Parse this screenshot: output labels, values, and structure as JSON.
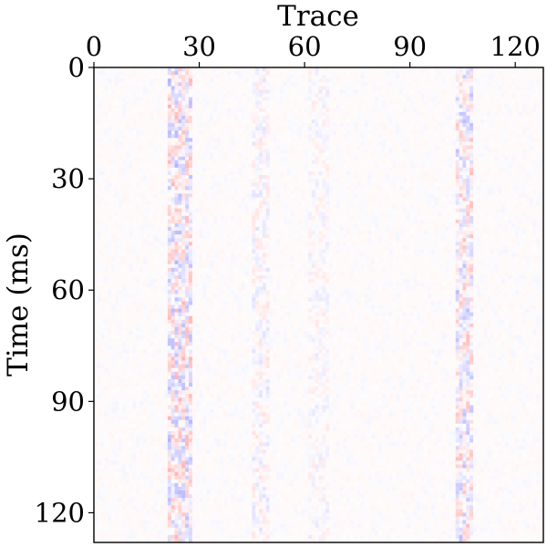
{
  "chart_data": {
    "type": "heatmap",
    "title": "",
    "xlabel": "Trace",
    "ylabel": "Time (ms)",
    "x_axis_position": "top",
    "xlim": [
      0,
      128
    ],
    "ylim": [
      0,
      128
    ],
    "xticks": [
      0,
      30,
      60,
      90,
      120
    ],
    "yticks": [
      0,
      30,
      60,
      90,
      120
    ],
    "xtick_labels": [
      "0",
      "30",
      "60",
      "90",
      "120"
    ],
    "ytick_labels": [
      "0",
      "30",
      "60",
      "90",
      "120"
    ],
    "y_inverted": true,
    "colormap": "bwr",
    "colormap_colors": {
      "negative": "#0000ff",
      "zero": "#ffffff",
      "positive": "#ff0000"
    },
    "value_range": [
      -1,
      1
    ],
    "grid": false,
    "n_traces": 128,
    "n_samples": 128,
    "background_amplitude": 0.04,
    "high_amplitude_trace_bands": [
      {
        "traces": [
          21,
          27
        ],
        "amplitude": 0.3
      },
      {
        "traces": [
          103,
          107
        ],
        "amplitude": 0.26
      },
      {
        "traces": [
          45,
          49
        ],
        "amplitude": 0.12
      },
      {
        "traces": [
          61,
          66
        ],
        "amplitude": 0.09
      }
    ]
  }
}
